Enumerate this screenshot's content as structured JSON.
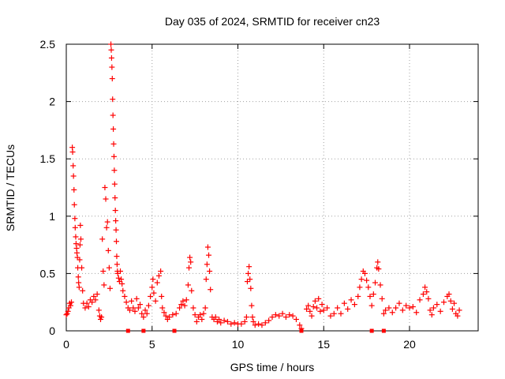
{
  "chart_data": {
    "type": "scatter",
    "title": "Day 035 of 2024, SRMTID for receiver cn23",
    "xlabel": "GPS time / hours",
    "ylabel": "SRMTID / TECUs",
    "xlim": [
      0,
      24
    ],
    "ylim": [
      0,
      2.5
    ],
    "xticks": [
      0,
      5,
      10,
      15,
      20
    ],
    "yticks": [
      0,
      0.5,
      1,
      1.5,
      2,
      2.5
    ],
    "ytick_labels": [
      "0",
      "0.5",
      "1",
      "1.5",
      "2",
      "2.5"
    ],
    "grid": true,
    "marker": "plus",
    "color": "#ff0000",
    "square_marker_times_hours": [
      3.6,
      4.5,
      6.3,
      13.7,
      17.8,
      18.5
    ],
    "series": [
      {
        "name": "SRMTID",
        "points": [
          [
            0.0,
            0.14
          ],
          [
            0.05,
            0.15
          ],
          [
            0.1,
            0.17
          ],
          [
            0.15,
            0.2
          ],
          [
            0.2,
            0.24
          ],
          [
            0.25,
            0.22
          ],
          [
            0.3,
            0.25
          ],
          [
            0.35,
            1.6
          ],
          [
            0.37,
            1.56
          ],
          [
            0.4,
            1.44
          ],
          [
            0.42,
            1.35
          ],
          [
            0.45,
            1.23
          ],
          [
            0.47,
            1.1
          ],
          [
            0.5,
            0.98
          ],
          [
            0.52,
            0.9
          ],
          [
            0.55,
            0.82
          ],
          [
            0.57,
            0.76
          ],
          [
            0.6,
            0.72
          ],
          [
            0.62,
            0.68
          ],
          [
            0.65,
            0.64
          ],
          [
            0.67,
            0.55
          ],
          [
            0.7,
            0.47
          ],
          [
            0.72,
            0.42
          ],
          [
            0.75,
            0.38
          ],
          [
            0.78,
            0.62
          ],
          [
            0.8,
            0.75
          ],
          [
            0.82,
            0.92
          ],
          [
            0.85,
            0.8
          ],
          [
            0.9,
            0.55
          ],
          [
            0.95,
            0.35
          ],
          [
            1.0,
            0.24
          ],
          [
            1.1,
            0.2
          ],
          [
            1.2,
            0.24
          ],
          [
            1.3,
            0.21
          ],
          [
            1.4,
            0.27
          ],
          [
            1.5,
            0.25
          ],
          [
            1.6,
            0.3
          ],
          [
            1.7,
            0.27
          ],
          [
            1.8,
            0.32
          ],
          [
            1.9,
            0.18
          ],
          [
            1.95,
            0.13
          ],
          [
            2.0,
            0.1
          ],
          [
            2.05,
            0.12
          ],
          [
            2.1,
            0.8
          ],
          [
            2.15,
            0.52
          ],
          [
            2.2,
            0.4
          ],
          [
            2.25,
            1.25
          ],
          [
            2.3,
            1.15
          ],
          [
            2.35,
            0.9
          ],
          [
            2.4,
            0.95
          ],
          [
            2.45,
            0.7
          ],
          [
            2.5,
            0.55
          ],
          [
            2.55,
            0.37
          ],
          [
            2.6,
            2.5
          ],
          [
            2.62,
            2.45
          ],
          [
            2.64,
            2.38
          ],
          [
            2.66,
            2.3
          ],
          [
            2.68,
            2.2
          ],
          [
            2.7,
            2.02
          ],
          [
            2.72,
            1.88
          ],
          [
            2.74,
            1.76
          ],
          [
            2.76,
            1.63
          ],
          [
            2.78,
            1.52
          ],
          [
            2.8,
            1.4
          ],
          [
            2.82,
            1.28
          ],
          [
            2.84,
            1.16
          ],
          [
            2.86,
            1.05
          ],
          [
            2.88,
            0.96
          ],
          [
            2.9,
            0.88
          ],
          [
            2.92,
            0.78
          ],
          [
            2.94,
            0.65
          ],
          [
            2.96,
            0.58
          ],
          [
            2.98,
            0.52
          ],
          [
            3.0,
            0.5
          ],
          [
            3.05,
            0.46
          ],
          [
            3.1,
            0.43
          ],
          [
            3.15,
            0.52
          ],
          [
            3.2,
            0.45
          ],
          [
            3.25,
            0.41
          ],
          [
            3.3,
            0.35
          ],
          [
            3.4,
            0.3
          ],
          [
            3.5,
            0.25
          ],
          [
            3.6,
            0.2
          ],
          [
            3.7,
            0.18
          ],
          [
            3.8,
            0.26
          ],
          [
            3.9,
            0.2
          ],
          [
            4.0,
            0.17
          ],
          [
            4.1,
            0.28
          ],
          [
            4.2,
            0.2
          ],
          [
            4.3,
            0.23
          ],
          [
            4.4,
            0.15
          ],
          [
            4.5,
            0.12
          ],
          [
            4.6,
            0.18
          ],
          [
            4.7,
            0.15
          ],
          [
            4.8,
            0.22
          ],
          [
            4.9,
            0.3
          ],
          [
            5.0,
            0.38
          ],
          [
            5.05,
            0.45
          ],
          [
            5.1,
            0.33
          ],
          [
            5.2,
            0.26
          ],
          [
            5.3,
            0.42
          ],
          [
            5.4,
            0.48
          ],
          [
            5.5,
            0.52
          ],
          [
            5.55,
            0.3
          ],
          [
            5.6,
            0.2
          ],
          [
            5.7,
            0.16
          ],
          [
            5.8,
            0.13
          ],
          [
            5.9,
            0.1
          ],
          [
            6.0,
            0.12
          ],
          [
            6.2,
            0.14
          ],
          [
            6.4,
            0.15
          ],
          [
            6.6,
            0.2
          ],
          [
            6.7,
            0.23
          ],
          [
            6.8,
            0.26
          ],
          [
            6.9,
            0.22
          ],
          [
            7.0,
            0.27
          ],
          [
            7.1,
            0.4
          ],
          [
            7.15,
            0.55
          ],
          [
            7.2,
            0.64
          ],
          [
            7.25,
            0.6
          ],
          [
            7.3,
            0.35
          ],
          [
            7.4,
            0.2
          ],
          [
            7.5,
            0.14
          ],
          [
            7.6,
            0.08
          ],
          [
            7.7,
            0.12
          ],
          [
            7.8,
            0.14
          ],
          [
            7.9,
            0.1
          ],
          [
            8.0,
            0.15
          ],
          [
            8.1,
            0.2
          ],
          [
            8.15,
            0.45
          ],
          [
            8.2,
            0.58
          ],
          [
            8.25,
            0.73
          ],
          [
            8.3,
            0.66
          ],
          [
            8.35,
            0.52
          ],
          [
            8.4,
            0.36
          ],
          [
            8.5,
            0.12
          ],
          [
            8.6,
            0.1
          ],
          [
            8.7,
            0.12
          ],
          [
            8.8,
            0.08
          ],
          [
            8.9,
            0.1
          ],
          [
            9.0,
            0.07
          ],
          [
            9.2,
            0.09
          ],
          [
            9.4,
            0.08
          ],
          [
            9.6,
            0.06
          ],
          [
            9.8,
            0.07
          ],
          [
            10.0,
            0.06
          ],
          [
            10.2,
            0.06
          ],
          [
            10.4,
            0.08
          ],
          [
            10.5,
            0.12
          ],
          [
            10.55,
            0.43
          ],
          [
            10.6,
            0.5
          ],
          [
            10.65,
            0.56
          ],
          [
            10.7,
            0.45
          ],
          [
            10.75,
            0.37
          ],
          [
            10.8,
            0.22
          ],
          [
            10.85,
            0.12
          ],
          [
            10.9,
            0.08
          ],
          [
            11.0,
            0.05
          ],
          [
            11.2,
            0.06
          ],
          [
            11.4,
            0.05
          ],
          [
            11.6,
            0.07
          ],
          [
            11.8,
            0.09
          ],
          [
            12.0,
            0.12
          ],
          [
            12.2,
            0.14
          ],
          [
            12.4,
            0.13
          ],
          [
            12.6,
            0.15
          ],
          [
            12.8,
            0.12
          ],
          [
            13.0,
            0.14
          ],
          [
            13.2,
            0.13
          ],
          [
            13.4,
            0.1
          ],
          [
            13.6,
            0.05
          ],
          [
            13.7,
            0.02
          ],
          [
            14.0,
            0.19
          ],
          [
            14.1,
            0.22
          ],
          [
            14.2,
            0.17
          ],
          [
            14.3,
            0.13
          ],
          [
            14.4,
            0.21
          ],
          [
            14.5,
            0.26
          ],
          [
            14.6,
            0.2
          ],
          [
            14.7,
            0.28
          ],
          [
            14.8,
            0.17
          ],
          [
            14.9,
            0.23
          ],
          [
            15.0,
            0.18
          ],
          [
            15.2,
            0.2
          ],
          [
            15.4,
            0.13
          ],
          [
            15.6,
            0.15
          ],
          [
            15.8,
            0.2
          ],
          [
            16.0,
            0.15
          ],
          [
            16.2,
            0.24
          ],
          [
            16.4,
            0.19
          ],
          [
            16.6,
            0.27
          ],
          [
            16.8,
            0.23
          ],
          [
            17.0,
            0.3
          ],
          [
            17.1,
            0.38
          ],
          [
            17.2,
            0.45
          ],
          [
            17.3,
            0.52
          ],
          [
            17.4,
            0.5
          ],
          [
            17.5,
            0.44
          ],
          [
            17.6,
            0.38
          ],
          [
            17.7,
            0.3
          ],
          [
            17.8,
            0.22
          ],
          [
            17.9,
            0.32
          ],
          [
            18.0,
            0.42
          ],
          [
            18.1,
            0.55
          ],
          [
            18.15,
            0.6
          ],
          [
            18.2,
            0.54
          ],
          [
            18.3,
            0.4
          ],
          [
            18.4,
            0.28
          ],
          [
            18.5,
            0.15
          ],
          [
            18.6,
            0.18
          ],
          [
            18.8,
            0.2
          ],
          [
            19.0,
            0.16
          ],
          [
            19.2,
            0.2
          ],
          [
            19.4,
            0.24
          ],
          [
            19.6,
            0.18
          ],
          [
            19.8,
            0.22
          ],
          [
            20.0,
            0.2
          ],
          [
            20.2,
            0.21
          ],
          [
            20.4,
            0.16
          ],
          [
            20.6,
            0.27
          ],
          [
            20.8,
            0.32
          ],
          [
            20.9,
            0.38
          ],
          [
            21.0,
            0.34
          ],
          [
            21.1,
            0.28
          ],
          [
            21.2,
            0.18
          ],
          [
            21.3,
            0.14
          ],
          [
            21.4,
            0.2
          ],
          [
            21.6,
            0.23
          ],
          [
            21.8,
            0.17
          ],
          [
            22.0,
            0.25
          ],
          [
            22.2,
            0.3
          ],
          [
            22.3,
            0.32
          ],
          [
            22.4,
            0.26
          ],
          [
            22.5,
            0.19
          ],
          [
            22.6,
            0.24
          ],
          [
            22.7,
            0.15
          ],
          [
            22.8,
            0.13
          ],
          [
            22.9,
            0.18
          ]
        ]
      }
    ]
  }
}
